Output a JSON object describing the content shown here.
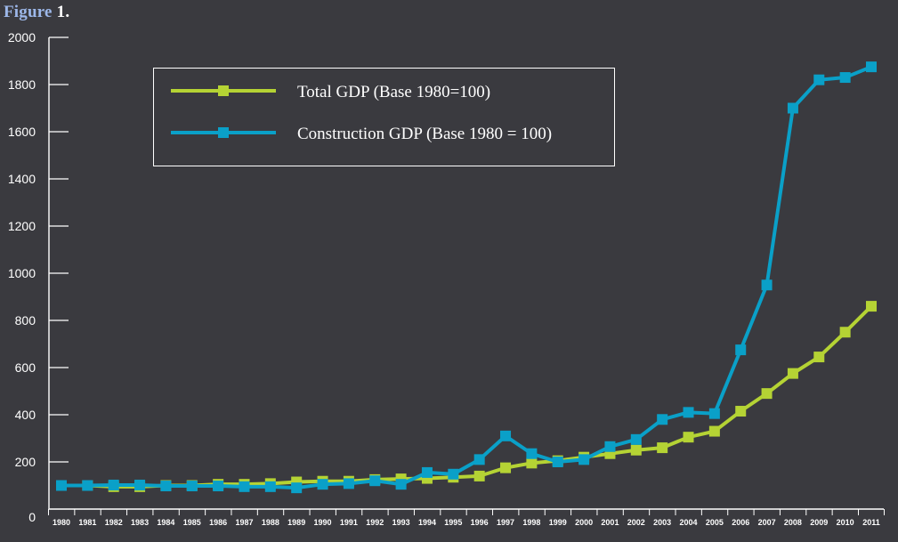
{
  "figure_label": {
    "word": "Figure",
    "number": "1."
  },
  "chart_data": {
    "type": "line",
    "categories": [
      "1980",
      "1981",
      "1982",
      "1983",
      "1984",
      "1985",
      "1986",
      "1987",
      "1988",
      "1989",
      "1990",
      "1991",
      "1992",
      "1993",
      "1994",
      "1995",
      "1996",
      "1997",
      "1998",
      "1999",
      "2000",
      "2001",
      "2002",
      "2003",
      "2004",
      "2005",
      "2006",
      "2007",
      "2008",
      "2009",
      "2010",
      "2011"
    ],
    "ylim": [
      0,
      2000
    ],
    "yticks": [
      0,
      200,
      400,
      600,
      800,
      1000,
      1200,
      1400,
      1600,
      1800,
      2000
    ],
    "xlabel": "",
    "ylabel": "",
    "grid": false,
    "legend_position": "top-left",
    "series": [
      {
        "name": "Total GDP (Base 1980=100)",
        "color": "#b5d334",
        "values": [
          100,
          100,
          95,
          95,
          100,
          100,
          105,
          105,
          108,
          115,
          118,
          118,
          125,
          128,
          130,
          135,
          140,
          175,
          195,
          205,
          220,
          235,
          250,
          260,
          305,
          330,
          415,
          490,
          575,
          645,
          750,
          860
        ]
      },
      {
        "name": "Construction GDP (Base 1980 = 100)",
        "color": "#0aa0c8",
        "values": [
          100,
          100,
          102,
          102,
          98,
          98,
          98,
          95,
          95,
          90,
          105,
          108,
          120,
          105,
          155,
          148,
          210,
          310,
          235,
          200,
          210,
          265,
          295,
          380,
          410,
          405,
          675,
          950,
          1700,
          1820,
          1830,
          1875
        ]
      }
    ]
  }
}
